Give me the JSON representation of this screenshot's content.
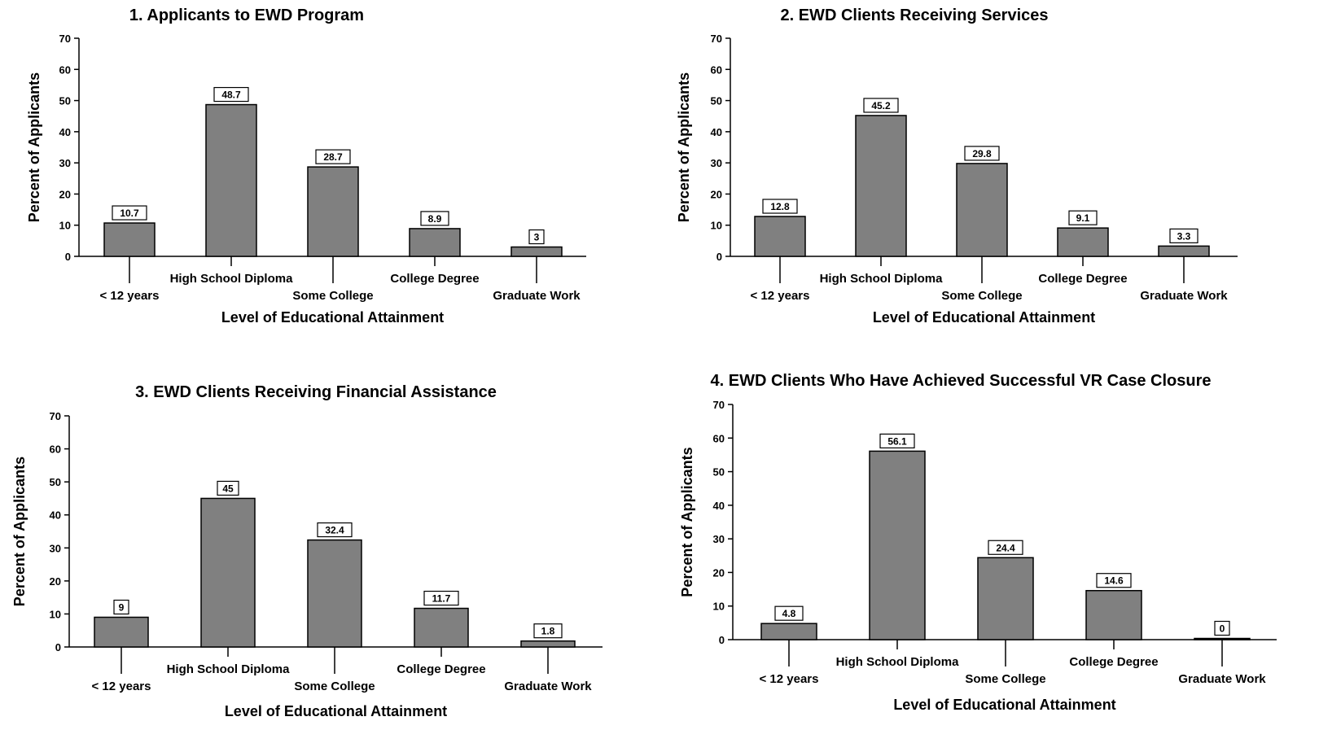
{
  "chart_data": [
    {
      "type": "bar",
      "title": "1.  Applicants to EWD Program",
      "xlabel": "Level of Educational Attainment",
      "ylabel": "Percent of Applicants",
      "categories": [
        "< 12 years",
        "High School Diploma",
        "Some College",
        "College Degree",
        "Graduate Work"
      ],
      "values": [
        10.7,
        48.7,
        28.7,
        8.9,
        3
      ],
      "value_labels": [
        "10.7",
        "48.7",
        "28.7",
        "8.9",
        "3"
      ],
      "ylim": [
        0,
        70
      ],
      "yticks": [
        "0",
        "10",
        "20",
        "30",
        "40",
        "50",
        "60",
        "70"
      ],
      "grid": false
    },
    {
      "type": "bar",
      "title": "2.  EWD Clients Receiving Services",
      "xlabel": "Level of Educational Attainment",
      "ylabel": "Percent of Applicants",
      "categories": [
        "< 12 years",
        "High School Diploma",
        "Some College",
        "College Degree",
        "Graduate Work"
      ],
      "values": [
        12.8,
        45.2,
        29.8,
        9.1,
        3.3
      ],
      "value_labels": [
        "12.8",
        "45.2",
        "29.8",
        "9.1",
        "3.3"
      ],
      "ylim": [
        0,
        70
      ],
      "yticks": [
        "0",
        "10",
        "20",
        "30",
        "40",
        "50",
        "60",
        "70"
      ],
      "grid": false
    },
    {
      "type": "bar",
      "title": "3.  EWD Clients Receiving Financial Assistance",
      "xlabel": "Level of Educational Attainment",
      "ylabel": "Percent of Applicants",
      "categories": [
        "< 12 years",
        "High School Diploma",
        "Some College",
        "College Degree",
        "Graduate Work"
      ],
      "values": [
        9,
        45,
        32.4,
        11.7,
        1.8
      ],
      "value_labels": [
        "9",
        "45",
        "32.4",
        "11.7",
        "1.8"
      ],
      "ylim": [
        0,
        70
      ],
      "yticks": [
        "0",
        "10",
        "20",
        "30",
        "40",
        "50",
        "60",
        "70"
      ],
      "grid": false
    },
    {
      "type": "bar",
      "title": "4.  EWD Clients Who Have Achieved Successful VR Case Closure",
      "xlabel": "Level of Educational Attainment",
      "ylabel": "Percent of Applicants",
      "categories": [
        "< 12 years",
        "High School Diploma",
        "Some College",
        "College Degree",
        "Graduate Work"
      ],
      "values": [
        4.8,
        56.1,
        24.4,
        14.6,
        0
      ],
      "value_labels": [
        "4.8",
        "56.1",
        "24.4",
        "14.6",
        "0"
      ],
      "ylim": [
        0,
        70
      ],
      "yticks": [
        "0",
        "10",
        "20",
        "30",
        "40",
        "50",
        "60",
        "70"
      ],
      "grid": false
    }
  ],
  "colors": {
    "bar_fill": "#808080",
    "bar_stroke": "#000000",
    "axis": "#000000",
    "background": "#ffffff"
  }
}
